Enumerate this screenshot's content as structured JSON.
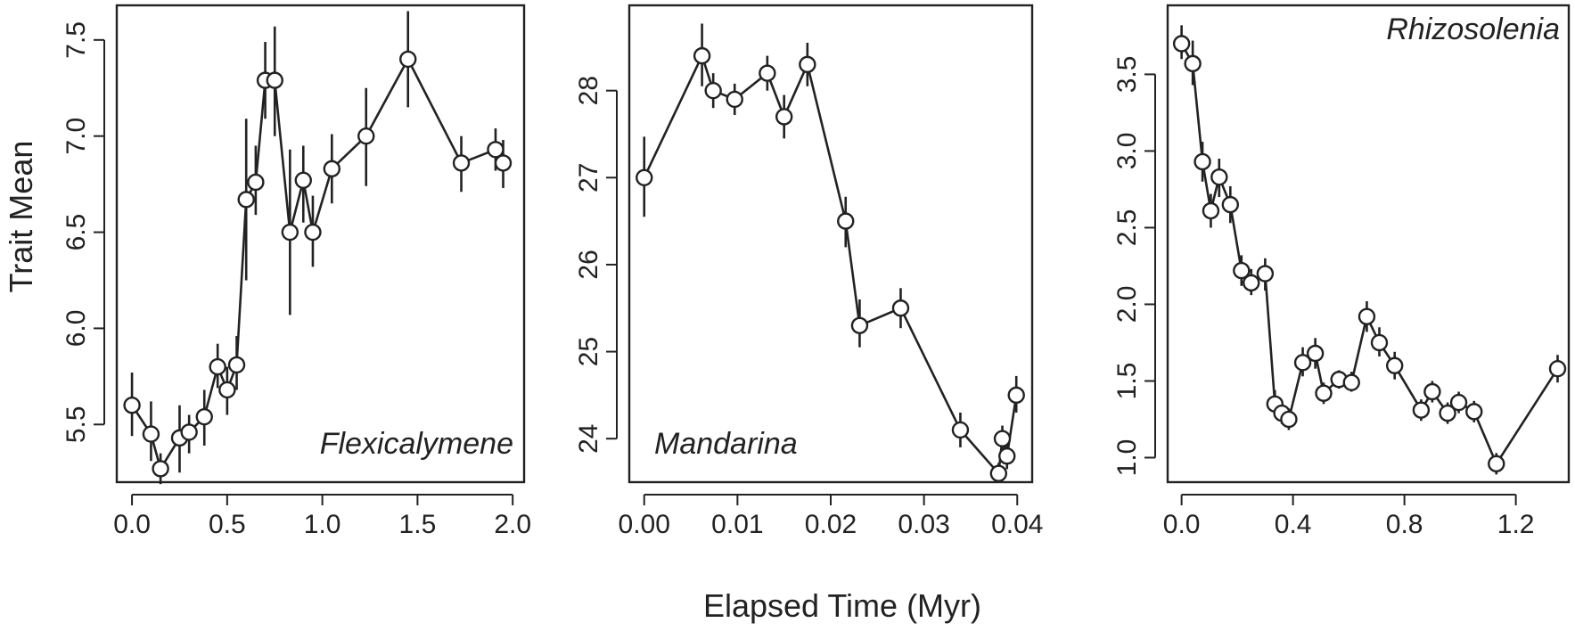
{
  "figure": {
    "xlabel": "Elapsed Time (Myr)",
    "ylabel": "Trait Mean"
  },
  "chart_data": [
    {
      "type": "line",
      "title": "Flexicalymene",
      "label_position": "bottom-right",
      "xlim": [
        -0.08,
        2.06
      ],
      "ylim": [
        5.2,
        7.68
      ],
      "xticks": [
        "0.0",
        "0.5",
        "1.0",
        "1.5",
        "2.0"
      ],
      "yticks": [
        "5.5",
        "6.0",
        "6.5",
        "7.0",
        "7.5"
      ],
      "points": [
        {
          "x": 0.0,
          "y": 5.6,
          "lo": 5.44,
          "hi": 5.77
        },
        {
          "x": 0.1,
          "y": 5.45,
          "lo": 5.31,
          "hi": 5.62
        },
        {
          "x": 0.15,
          "y": 5.27,
          "lo": 5.19,
          "hi": 5.35
        },
        {
          "x": 0.25,
          "y": 5.43,
          "lo": 5.25,
          "hi": 5.6
        },
        {
          "x": 0.3,
          "y": 5.46,
          "lo": 5.35,
          "hi": 5.55
        },
        {
          "x": 0.38,
          "y": 5.54,
          "lo": 5.39,
          "hi": 5.68
        },
        {
          "x": 0.45,
          "y": 5.8,
          "lo": 5.69,
          "hi": 5.92
        },
        {
          "x": 0.5,
          "y": 5.68,
          "lo": 5.55,
          "hi": 5.8
        },
        {
          "x": 0.55,
          "y": 5.81,
          "lo": 5.68,
          "hi": 5.96
        },
        {
          "x": 0.6,
          "y": 6.67,
          "lo": 6.25,
          "hi": 7.09
        },
        {
          "x": 0.65,
          "y": 6.76,
          "lo": 6.59,
          "hi": 6.95
        },
        {
          "x": 0.7,
          "y": 7.29,
          "lo": 7.09,
          "hi": 7.49
        },
        {
          "x": 0.75,
          "y": 7.29,
          "lo": 7.0,
          "hi": 7.57
        },
        {
          "x": 0.83,
          "y": 6.5,
          "lo": 6.07,
          "hi": 6.93
        },
        {
          "x": 0.9,
          "y": 6.77,
          "lo": 6.55,
          "hi": 6.95
        },
        {
          "x": 0.95,
          "y": 6.5,
          "lo": 6.32,
          "hi": 6.69
        },
        {
          "x": 1.05,
          "y": 6.83,
          "lo": 6.65,
          "hi": 7.01
        },
        {
          "x": 1.23,
          "y": 7.0,
          "lo": 6.74,
          "hi": 7.25
        },
        {
          "x": 1.45,
          "y": 7.4,
          "lo": 7.15,
          "hi": 7.65
        },
        {
          "x": 1.73,
          "y": 6.86,
          "lo": 6.71,
          "hi": 7.0
        },
        {
          "x": 1.91,
          "y": 6.93,
          "lo": 6.82,
          "hi": 7.04
        },
        {
          "x": 1.95,
          "y": 6.86,
          "lo": 6.73,
          "hi": 6.98
        }
      ]
    },
    {
      "type": "line",
      "title": "Mandarina",
      "label_position": "bottom-left",
      "xlim": [
        -0.0016,
        0.0416
      ],
      "ylim": [
        23.5,
        28.98
      ],
      "xticks": [
        "0.00",
        "0.01",
        "0.02",
        "0.03",
        "0.04"
      ],
      "yticks": [
        "24",
        "25",
        "26",
        "27",
        "28"
      ],
      "points": [
        {
          "x": 0.0,
          "y": 27.0,
          "lo": 26.55,
          "hi": 27.47
        },
        {
          "x": 0.0062,
          "y": 28.4,
          "lo": 28.05,
          "hi": 28.77
        },
        {
          "x": 0.0074,
          "y": 28.0,
          "lo": 27.8,
          "hi": 28.2
        },
        {
          "x": 0.0097,
          "y": 27.9,
          "lo": 27.72,
          "hi": 28.08
        },
        {
          "x": 0.0132,
          "y": 28.2,
          "lo": 28.0,
          "hi": 28.4
        },
        {
          "x": 0.015,
          "y": 27.7,
          "lo": 27.45,
          "hi": 27.95
        },
        {
          "x": 0.0175,
          "y": 28.3,
          "lo": 28.05,
          "hi": 28.55
        },
        {
          "x": 0.0216,
          "y": 26.5,
          "lo": 26.2,
          "hi": 26.78
        },
        {
          "x": 0.0231,
          "y": 25.3,
          "lo": 25.05,
          "hi": 25.6
        },
        {
          "x": 0.0275,
          "y": 25.5,
          "lo": 25.27,
          "hi": 25.73
        },
        {
          "x": 0.0339,
          "y": 24.1,
          "lo": 23.9,
          "hi": 24.3
        },
        {
          "x": 0.038,
          "y": 23.6,
          "lo": 23.5,
          "hi": 23.72
        },
        {
          "x": 0.0384,
          "y": 24.0,
          "lo": 23.85,
          "hi": 24.15
        },
        {
          "x": 0.0389,
          "y": 23.8,
          "lo": 23.65,
          "hi": 23.93
        },
        {
          "x": 0.0399,
          "y": 24.5,
          "lo": 24.3,
          "hi": 24.72
        }
      ]
    },
    {
      "type": "line",
      "title": "Rhizosolenia",
      "label_position": "top-right",
      "xlim": [
        -0.05,
        1.39
      ],
      "ylim": [
        0.84,
        3.95
      ],
      "xticks": [
        "0.0",
        "0.4",
        "0.8",
        "1.2"
      ],
      "yticks": [
        "1.0",
        "1.5",
        "2.0",
        "2.5",
        "3.0",
        "3.5"
      ],
      "points": [
        {
          "x": 0.0,
          "y": 3.7,
          "lo": 3.6,
          "hi": 3.82
        },
        {
          "x": 0.04,
          "y": 3.57,
          "lo": 3.43,
          "hi": 3.72
        },
        {
          "x": 0.075,
          "y": 2.93,
          "lo": 2.8,
          "hi": 3.06
        },
        {
          "x": 0.105,
          "y": 2.61,
          "lo": 2.5,
          "hi": 2.72
        },
        {
          "x": 0.135,
          "y": 2.83,
          "lo": 2.7,
          "hi": 2.95
        },
        {
          "x": 0.175,
          "y": 2.65,
          "lo": 2.53,
          "hi": 2.77
        },
        {
          "x": 0.215,
          "y": 2.22,
          "lo": 2.12,
          "hi": 2.32
        },
        {
          "x": 0.25,
          "y": 2.14,
          "lo": 2.06,
          "hi": 2.23
        },
        {
          "x": 0.3,
          "y": 2.2,
          "lo": 2.09,
          "hi": 2.3
        },
        {
          "x": 0.335,
          "y": 1.35,
          "lo": 1.27,
          "hi": 1.44
        },
        {
          "x": 0.36,
          "y": 1.29,
          "lo": 1.22,
          "hi": 1.37
        },
        {
          "x": 0.385,
          "y": 1.25,
          "lo": 1.18,
          "hi": 1.32
        },
        {
          "x": 0.435,
          "y": 1.62,
          "lo": 1.53,
          "hi": 1.72
        },
        {
          "x": 0.48,
          "y": 1.68,
          "lo": 1.58,
          "hi": 1.78
        },
        {
          "x": 0.51,
          "y": 1.42,
          "lo": 1.35,
          "hi": 1.49
        },
        {
          "x": 0.565,
          "y": 1.51,
          "lo": 1.45,
          "hi": 1.57
        },
        {
          "x": 0.61,
          "y": 1.49,
          "lo": 1.43,
          "hi": 1.56
        },
        {
          "x": 0.665,
          "y": 1.92,
          "lo": 1.82,
          "hi": 2.02
        },
        {
          "x": 0.71,
          "y": 1.75,
          "lo": 1.66,
          "hi": 1.85
        },
        {
          "x": 0.765,
          "y": 1.6,
          "lo": 1.51,
          "hi": 1.69
        },
        {
          "x": 0.86,
          "y": 1.31,
          "lo": 1.24,
          "hi": 1.38
        },
        {
          "x": 0.9,
          "y": 1.43,
          "lo": 1.36,
          "hi": 1.5
        },
        {
          "x": 0.955,
          "y": 1.29,
          "lo": 1.22,
          "hi": 1.36
        },
        {
          "x": 0.995,
          "y": 1.36,
          "lo": 1.29,
          "hi": 1.43
        },
        {
          "x": 1.05,
          "y": 1.3,
          "lo": 1.23,
          "hi": 1.37
        },
        {
          "x": 1.13,
          "y": 0.96,
          "lo": 0.89,
          "hi": 1.03
        },
        {
          "x": 1.35,
          "y": 1.58,
          "lo": 1.49,
          "hi": 1.67
        }
      ]
    }
  ]
}
